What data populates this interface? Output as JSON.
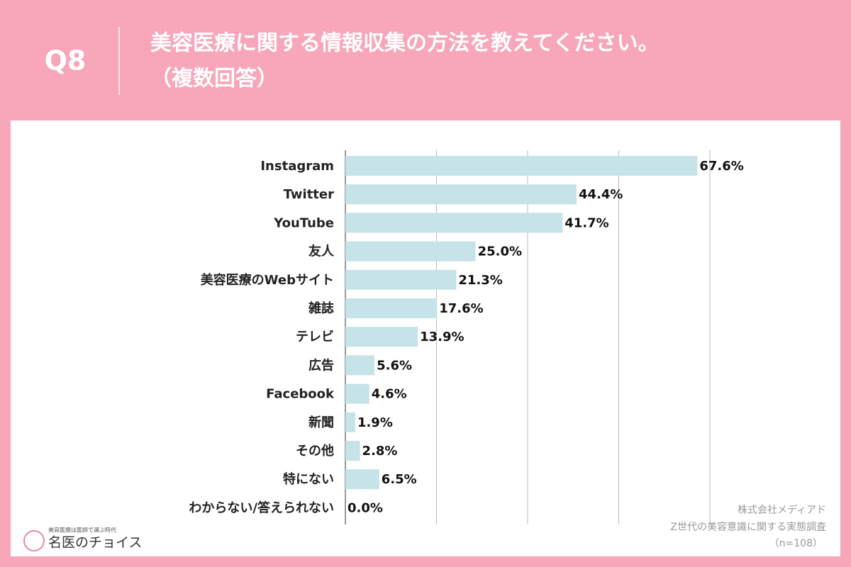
{
  "chart_data": {
    "type": "bar",
    "orientation": "horizontal",
    "question": "Q8",
    "title": "美容医療に関する情報収集の方法を教えてください。",
    "subtitle": "（複数回答）",
    "categories": [
      "Instagram",
      "Twitter",
      "YouTube",
      "友人",
      "美容医療のWebサイト",
      "雑誌",
      "テレビ",
      "広告",
      "Facebook",
      "新聞",
      "その他",
      "特にない",
      "わからない/答えられない"
    ],
    "values": [
      67.6,
      44.4,
      41.7,
      25.0,
      21.3,
      17.6,
      13.9,
      5.6,
      4.6,
      1.9,
      2.8,
      6.5,
      0.0
    ],
    "value_labels": [
      "67.6%",
      "44.4%",
      "41.7%",
      "25.0%",
      "21.3%",
      "17.6%",
      "13.9%",
      "5.6%",
      "4.6%",
      "1.9%",
      "2.8%",
      "6.5%",
      "0.0%"
    ],
    "color": "#c5e3e8",
    "xlim": [
      0,
      70
    ],
    "xticks": [
      0,
      17.5,
      35,
      52.5,
      70
    ],
    "grid": true,
    "source": [
      "株式会社メディアド",
      "Z世代の美容意識に関する実態調査",
      "（n=108）"
    ],
    "logo": {
      "tagline": "美容医療は医師で選ぶ時代",
      "name": "名医のチョイス"
    }
  }
}
